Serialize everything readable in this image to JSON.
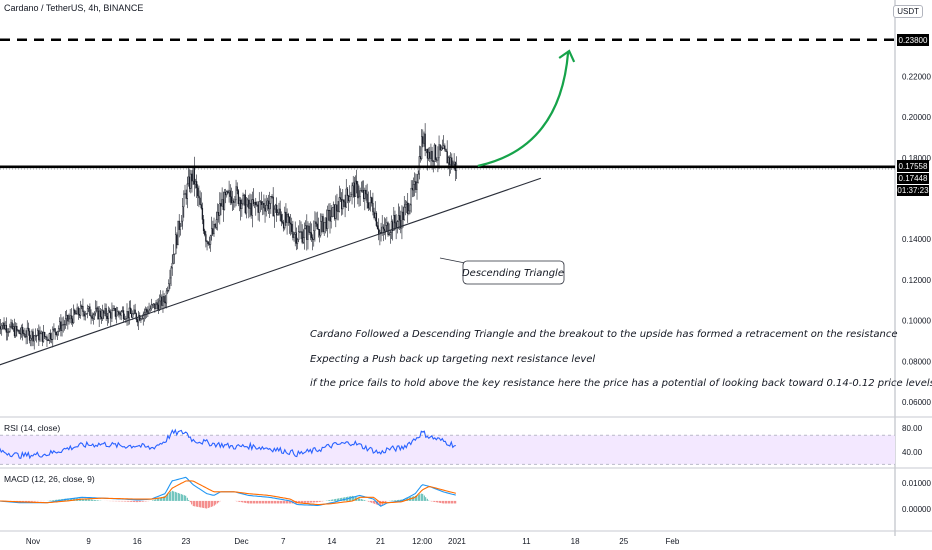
{
  "header": {
    "title": "Cardano / TetherUS, 4h, BINANCE",
    "currency": "USDT"
  },
  "price_axis": {
    "ticks": [
      "0.22000",
      "0.20000",
      "0.18000",
      "0.14000",
      "0.12000",
      "0.10000",
      "0.08000",
      "0.06000"
    ],
    "target_label": "0.23800",
    "resistance_label": "0.17558",
    "current_label": "0.17448",
    "countdown_label": "01:37:23"
  },
  "time_axis": {
    "ticks": [
      "Nov",
      "9",
      "16",
      "23",
      "Dec",
      "7",
      "14",
      "21",
      "12:00",
      "2021",
      "11",
      "18",
      "25",
      "Feb"
    ]
  },
  "annotations": {
    "pattern_label": "Descending Triangle",
    "notes": [
      "Cardano Followed a Descending Triangle and the breakout to the upside has formed a retracement on the resistance",
      "Expecting a Push back up targeting next resistance level",
      "if the price fails to hold above the key resistance here the price has a potential of looking back toward 0.14-0.12 price levels"
    ]
  },
  "rsi": {
    "label": "RSI (14, close)",
    "ticks": [
      "80.00",
      "40.00"
    ]
  },
  "macd": {
    "label": "MACD (12, 26, close, 9)",
    "ticks": [
      "0.01000",
      "0.00000"
    ]
  },
  "colors": {
    "up": "#26a69a",
    "down": "#131722",
    "arrow": "#16a34a",
    "rsi": "#2962ff",
    "rsi_band": "#f3e8ff",
    "macd": "#2196f3",
    "signal": "#ff6d00"
  },
  "chart_data": {
    "type": "candlestick",
    "title": "Cardano / TetherUS, 4h, BINANCE",
    "y_unit": "USDT",
    "ylim": [
      0.05,
      0.245
    ],
    "levels": {
      "target_resistance": 0.238,
      "key_resistance": 0.17558,
      "current_price": 0.17448
    },
    "close_path": [
      {
        "x": "Oct 27",
        "y": 0.099
      },
      {
        "x": "Oct 30",
        "y": 0.094
      },
      {
        "x": "Nov 3",
        "y": 0.092
      },
      {
        "x": "Nov 6",
        "y": 0.1
      },
      {
        "x": "Nov 8",
        "y": 0.105
      },
      {
        "x": "Nov 11",
        "y": 0.103
      },
      {
        "x": "Nov 14",
        "y": 0.104
      },
      {
        "x": "Nov 16",
        "y": 0.102
      },
      {
        "x": "Nov 18",
        "y": 0.106
      },
      {
        "x": "Nov 20",
        "y": 0.11
      },
      {
        "x": "Nov 21",
        "y": 0.13
      },
      {
        "x": "Nov 23",
        "y": 0.163
      },
      {
        "x": "Nov 24",
        "y": 0.172
      },
      {
        "x": "Nov 26",
        "y": 0.14
      },
      {
        "x": "Nov 27",
        "y": 0.143
      },
      {
        "x": "Nov 28",
        "y": 0.157
      },
      {
        "x": "Nov 30",
        "y": 0.163
      },
      {
        "x": "Dec 2",
        "y": 0.155
      },
      {
        "x": "Dec 5",
        "y": 0.158
      },
      {
        "x": "Dec 8",
        "y": 0.146
      },
      {
        "x": "Dec 9",
        "y": 0.142
      },
      {
        "x": "Dec 12",
        "y": 0.145
      },
      {
        "x": "Dec 14",
        "y": 0.152
      },
      {
        "x": "Dec 17",
        "y": 0.165
      },
      {
        "x": "Dec 18",
        "y": 0.163
      },
      {
        "x": "Dec 20",
        "y": 0.156
      },
      {
        "x": "Dec 21",
        "y": 0.142
      },
      {
        "x": "Dec 22",
        "y": 0.146
      },
      {
        "x": "Dec 24",
        "y": 0.15
      },
      {
        "x": "Dec 26",
        "y": 0.165
      },
      {
        "x": "Dec 27",
        "y": 0.19
      },
      {
        "x": "Dec 28",
        "y": 0.182
      },
      {
        "x": "Dec 30",
        "y": 0.182
      },
      {
        "x": "Jan 1",
        "y": 0.175
      }
    ],
    "pattern_lines": [
      {
        "name": "support_trendline",
        "from": {
          "x": "Oct 27",
          "y": 0.078
        },
        "to": {
          "x": "Jan 3",
          "y": 0.167
        }
      },
      {
        "name": "resistance",
        "y": 0.1755
      }
    ],
    "rsi": {
      "ylim": [
        25,
        95
      ],
      "band": [
        30,
        70
      ],
      "values": [
        49,
        42,
        44,
        52,
        56,
        58,
        55,
        56,
        52,
        62,
        73,
        74,
        63,
        60,
        58,
        57,
        54,
        55,
        52,
        47,
        44,
        50,
        56,
        60,
        56,
        49,
        45,
        51,
        52,
        65,
        74,
        68,
        62,
        55
      ]
    },
    "macd": {
      "ylim": [
        -0.016,
        0.017
      ],
      "macd": [
        0.0,
        -0.001,
        -0.001,
        0.001,
        0.002,
        0.0015,
        0.001,
        0.0005,
        0.001,
        0.004,
        0.011,
        0.013,
        0.009,
        0.004,
        0.003,
        0.005,
        0.005,
        0.003,
        0.002,
        0.0,
        -0.002,
        -0.0025,
        -0.001,
        0.002,
        0.003,
        0.001,
        -0.003,
        -0.001,
        0.0,
        0.004,
        0.009,
        0.008,
        0.005,
        0.003
      ],
      "signal": [
        0.0,
        -0.0005,
        -0.001,
        0.0,
        0.001,
        0.0015,
        0.0012,
        0.001,
        0.001,
        0.002,
        0.007,
        0.011,
        0.011,
        0.007,
        0.005,
        0.005,
        0.005,
        0.004,
        0.003,
        0.001,
        -0.001,
        -0.002,
        -0.0015,
        0.0,
        0.002,
        0.002,
        -0.001,
        -0.001,
        -0.0005,
        0.002,
        0.006,
        0.008,
        0.006,
        0.004
      ]
    }
  }
}
